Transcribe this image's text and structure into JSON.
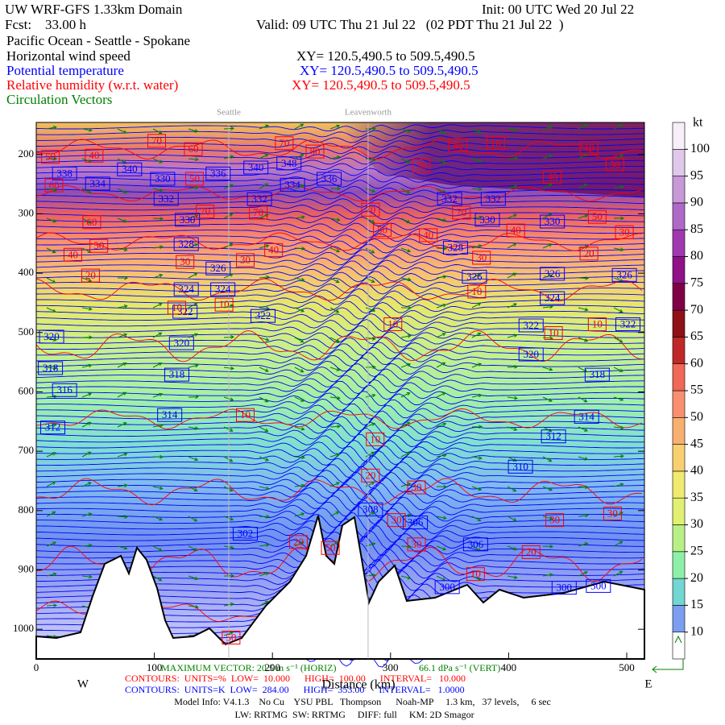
{
  "chart_data": {
    "type": "cross-section",
    "header": {
      "title": "UW WRF-GFS 1.33km Domain",
      "init": "Init: 00 UTC Wed 20 Jul 22",
      "forecast": "Fcst:    33.00 h",
      "valid": "Valid: 09 UTC Thu 21 Jul 22   (02 PDT Thu 21 Jul 22  )",
      "route": "Pacific Ocean - Seattle - Spokane",
      "fields": [
        {
          "name": "Horizontal wind speed",
          "xy": "XY= 120.5,490.5 to 509.5,490.5",
          "color": "#000000"
        },
        {
          "name": "Potential temperature",
          "xy": "XY= 120.5,490.5 to 509.5,490.5",
          "color": "#0000ff"
        },
        {
          "name": "Relative humidity (w.r.t. water)",
          "xy": "XY= 120.5,490.5 to 509.5,490.5",
          "color": "#ff0000"
        },
        {
          "name": "Circulation Vectors",
          "color": "#008000"
        }
      ]
    },
    "locations": [
      {
        "label": "Seattle",
        "x": 163
      },
      {
        "label": "Leavenworth",
        "x": 281
      }
    ],
    "xlim": [
      0,
      515
    ],
    "xticks": [
      0,
      100,
      200,
      300,
      400,
      500
    ],
    "ylim": [
      146,
      1050
    ],
    "yticks": [
      200,
      300,
      400,
      500,
      600,
      700,
      800,
      900,
      1000
    ],
    "y_reversed": true,
    "x_label": "Distance (km)",
    "x_left_label": "W",
    "x_right_label": "E",
    "colorbar": {
      "unit": "kt",
      "clim": [
        5,
        105
      ],
      "levels": [
        10,
        15,
        20,
        25,
        30,
        35,
        40,
        45,
        50,
        55,
        60,
        65,
        70,
        75,
        80,
        85,
        90,
        95,
        100
      ],
      "colors": [
        "#ffffff",
        "#7b9ef0",
        "#72d6d2",
        "#8ef0a8",
        "#b8f088",
        "#e0f070",
        "#f0ea70",
        "#f8d070",
        "#f8b070",
        "#f89070",
        "#f06858",
        "#c02828",
        "#901018",
        "#800048",
        "#901088",
        "#a038b0",
        "#b068c8",
        "#c898d8",
        "#e0c8ec",
        "#f6eef8"
      ]
    },
    "theta_color": "#0000ff",
    "theta_labels": [
      {
        "value": 338,
        "x": 24,
        "y": 232
      },
      {
        "value": 340,
        "x": 79,
        "y": 225
      },
      {
        "value": 330,
        "x": 107,
        "y": 241
      },
      {
        "value": 336,
        "x": 154,
        "y": 232
      },
      {
        "value": 340,
        "x": 186,
        "y": 222
      },
      {
        "value": 348,
        "x": 214,
        "y": 215
      },
      {
        "value": 334,
        "x": 52,
        "y": 249
      },
      {
        "value": 334,
        "x": 217,
        "y": 251
      },
      {
        "value": 336,
        "x": 248,
        "y": 241
      },
      {
        "value": 332,
        "x": 110,
        "y": 275
      },
      {
        "value": 332,
        "x": 189,
        "y": 275
      },
      {
        "value": 332,
        "x": 350,
        "y": 275
      },
      {
        "value": 332,
        "x": 387,
        "y": 275
      },
      {
        "value": 330,
        "x": 128,
        "y": 310
      },
      {
        "value": 330,
        "x": 382,
        "y": 310
      },
      {
        "value": 330,
        "x": 437,
        "y": 313
      },
      {
        "value": 328,
        "x": 127,
        "y": 351
      },
      {
        "value": 328,
        "x": 355,
        "y": 357
      },
      {
        "value": 326,
        "x": 154,
        "y": 392
      },
      {
        "value": 326,
        "x": 371,
        "y": 406
      },
      {
        "value": 326,
        "x": 437,
        "y": 401
      },
      {
        "value": 326,
        "x": 498,
        "y": 403
      },
      {
        "value": 324,
        "x": 127,
        "y": 427
      },
      {
        "value": 324,
        "x": 158,
        "y": 427
      },
      {
        "value": 324,
        "x": 437,
        "y": 442
      },
      {
        "value": 322,
        "x": 126,
        "y": 465
      },
      {
        "value": 322,
        "x": 192,
        "y": 472
      },
      {
        "value": 322,
        "x": 419,
        "y": 488
      },
      {
        "value": 322,
        "x": 501,
        "y": 486
      },
      {
        "value": 320,
        "x": 13,
        "y": 507
      },
      {
        "value": 320,
        "x": 123,
        "y": 518
      },
      {
        "value": 320,
        "x": 419,
        "y": 537
      },
      {
        "value": 318,
        "x": 12,
        "y": 560
      },
      {
        "value": 318,
        "x": 119,
        "y": 571
      },
      {
        "value": 318,
        "x": 475,
        "y": 571
      },
      {
        "value": 316,
        "x": 24,
        "y": 597
      },
      {
        "value": 314,
        "x": 113,
        "y": 639
      },
      {
        "value": 314,
        "x": 466,
        "y": 642
      },
      {
        "value": 312,
        "x": 14,
        "y": 660
      },
      {
        "value": 312,
        "x": 438,
        "y": 675
      },
      {
        "value": 310,
        "x": 410,
        "y": 726
      },
      {
        "value": 308,
        "x": 283,
        "y": 798
      },
      {
        "value": 306,
        "x": 321,
        "y": 820
      },
      {
        "value": 306,
        "x": 372,
        "y": 857
      },
      {
        "value": 302,
        "x": 177,
        "y": 839
      },
      {
        "value": 300,
        "x": 348,
        "y": 929
      },
      {
        "value": 300,
        "x": 447,
        "y": 930
      },
      {
        "value": 300,
        "x": 476,
        "y": 927
      }
    ],
    "rh_color": "#ff0000",
    "rh_labels": [
      {
        "value": 70,
        "x": 102,
        "y": 177
      },
      {
        "value": 60,
        "x": 133,
        "y": 191
      },
      {
        "value": 50,
        "x": 12,
        "y": 204
      },
      {
        "value": 40,
        "x": 49,
        "y": 202
      },
      {
        "value": 70,
        "x": 210,
        "y": 181
      },
      {
        "value": 80,
        "x": 236,
        "y": 195
      },
      {
        "value": 50,
        "x": 134,
        "y": 241
      },
      {
        "value": 60,
        "x": 15,
        "y": 252
      },
      {
        "value": 70,
        "x": 143,
        "y": 296
      },
      {
        "value": 70,
        "x": 188,
        "y": 298
      },
      {
        "value": 60,
        "x": 47,
        "y": 314
      },
      {
        "value": 50,
        "x": 53,
        "y": 354
      },
      {
        "value": 40,
        "x": 31,
        "y": 369
      },
      {
        "value": 30,
        "x": 177,
        "y": 378
      },
      {
        "value": 40,
        "x": 201,
        "y": 361
      },
      {
        "value": 20,
        "x": 46,
        "y": 404
      },
      {
        "value": 30,
        "x": 126,
        "y": 381
      },
      {
        "value": 70,
        "x": 283,
        "y": 293
      },
      {
        "value": 50,
        "x": 293,
        "y": 327
      },
      {
        "value": 40,
        "x": 332,
        "y": 336
      },
      {
        "value": 70,
        "x": 360,
        "y": 298
      },
      {
        "value": 40,
        "x": 406,
        "y": 328
      },
      {
        "value": 50,
        "x": 475,
        "y": 305
      },
      {
        "value": 30,
        "x": 498,
        "y": 331
      },
      {
        "value": 20,
        "x": 468,
        "y": 367
      },
      {
        "value": 30,
        "x": 377,
        "y": 374
      },
      {
        "value": 10,
        "x": 373,
        "y": 431
      },
      {
        "value": 10,
        "x": 159,
        "y": 453
      },
      {
        "value": 10,
        "x": 119,
        "y": 458
      },
      {
        "value": 10,
        "x": 302,
        "y": 486
      },
      {
        "value": 10,
        "x": 438,
        "y": 501
      },
      {
        "value": 10,
        "x": 475,
        "y": 486
      },
      {
        "value": 20,
        "x": 357,
        "y": 184
      },
      {
        "value": 10,
        "x": 389,
        "y": 181
      },
      {
        "value": 10,
        "x": 468,
        "y": 189
      },
      {
        "value": 30,
        "x": 326,
        "y": 219
      },
      {
        "value": 40,
        "x": 437,
        "y": 238
      },
      {
        "value": 30,
        "x": 490,
        "y": 217
      },
      {
        "value": 10,
        "x": 177,
        "y": 639
      },
      {
        "value": 10,
        "x": 287,
        "y": 680
      },
      {
        "value": 20,
        "x": 283,
        "y": 741
      },
      {
        "value": 30,
        "x": 322,
        "y": 761
      },
      {
        "value": 30,
        "x": 305,
        "y": 816
      },
      {
        "value": 30,
        "x": 439,
        "y": 816
      },
      {
        "value": 30,
        "x": 488,
        "y": 805
      },
      {
        "value": 20,
        "x": 419,
        "y": 870
      },
      {
        "value": 30,
        "x": 322,
        "y": 857
      },
      {
        "value": 10,
        "x": 372,
        "y": 907
      },
      {
        "value": 50,
        "x": 249,
        "y": 863
      },
      {
        "value": 20,
        "x": 222,
        "y": 853
      },
      {
        "value": 50,
        "x": 165,
        "y": 1014
      }
    ],
    "footer": {
      "max_vector": "MAXIMUM VECTOR: 20.5 m s⁻¹ (HORIZ)",
      "max_vertical": "66.1 dPa s⁻¹ (VERT)",
      "rh_contours": "CONTOURS:  UNITS=%  LOW=  10.000      HIGH=  100.00      INTERVAL=   10.000",
      "theta_contours": "CONTOURS:  UNITS=K  LOW=  284.00      HIGH=  353.00      INTERVAL=   1.0000",
      "model_info": "Model Info: V4.1.3    No Cu    YSU PBL   Thompson      Noah-MP     1.3 km,   37 levels,     6 sec",
      "physics": "LW: RRTMG  SW: RRTMG     DIFF: full     KM: 2D Smagor"
    }
  }
}
